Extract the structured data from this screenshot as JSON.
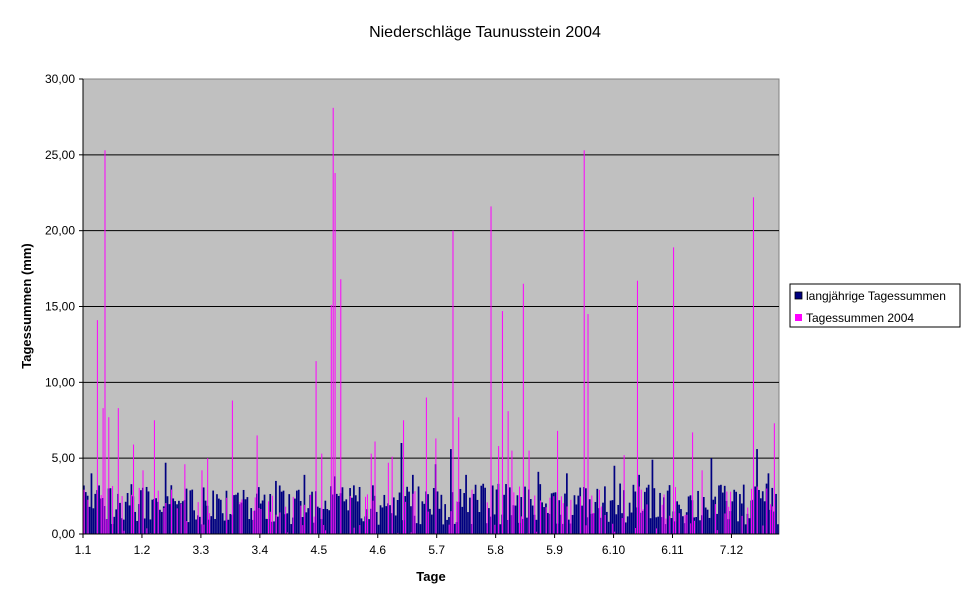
{
  "chart_data": {
    "type": "bar",
    "title": "Niederschläge Taunusstein 2004",
    "xlabel": "Tage",
    "ylabel": "Tagessummen  (mm)",
    "ylim": [
      0,
      30
    ],
    "y_ticks": [
      "0,00",
      "5,00",
      "10,00",
      "15,00",
      "20,00",
      "25,00",
      "30,00"
    ],
    "y_tick_values": [
      0,
      5,
      10,
      15,
      20,
      25,
      30
    ],
    "x_tick_labels": [
      "1.1",
      "1.2",
      "3.3",
      "3.4",
      "4.5",
      "4.6",
      "5.7",
      "5.8",
      "5.9",
      "6.10",
      "6.11",
      "7.12"
    ],
    "x_tick_days": [
      1,
      32,
      63,
      94,
      125,
      156,
      187,
      218,
      249,
      280,
      311,
      342
    ],
    "days": 366,
    "grid": true,
    "legend_position": "right",
    "colors": {
      "plot_bg": "#c0c0c0",
      "longterm": "#000080",
      "year2004": "#ff00ff"
    },
    "series": [
      {
        "name": "langjährige Tagessummen",
        "color": "#000080",
        "baseline_mm": 2.1,
        "peaks": [
          [
            1,
            3.2
          ],
          [
            5,
            4.0
          ],
          [
            44,
            4.7
          ],
          [
            102,
            3.5
          ],
          [
            117,
            3.9
          ],
          [
            133,
            3.8
          ],
          [
            146,
            3.1
          ],
          [
            168,
            6.0
          ],
          [
            174,
            3.9
          ],
          [
            186,
            4.6
          ],
          [
            194,
            5.6
          ],
          [
            202,
            3.9
          ],
          [
            216,
            3.2
          ],
          [
            240,
            4.1
          ],
          [
            255,
            4.0
          ],
          [
            280,
            4.5
          ],
          [
            293,
            3.9
          ],
          [
            300,
            4.9
          ],
          [
            331,
            5.0
          ],
          [
            355,
            5.6
          ],
          [
            361,
            4.0
          ]
        ]
      },
      {
        "name": "Tagessummen 2004",
        "color": "#ff00ff",
        "values_sparse": [
          [
            8,
            14.1
          ],
          [
            11,
            8.3
          ],
          [
            12,
            25.3
          ],
          [
            14,
            7.7
          ],
          [
            19,
            8.3
          ],
          [
            27,
            5.9
          ],
          [
            32,
            4.2
          ],
          [
            38,
            7.5
          ],
          [
            54,
            4.6
          ],
          [
            63,
            4.2
          ],
          [
            66,
            5.0
          ],
          [
            79,
            8.8
          ],
          [
            92,
            6.5
          ],
          [
            123,
            11.4
          ],
          [
            126,
            5.3
          ],
          [
            131,
            15.1
          ],
          [
            132,
            28.1
          ],
          [
            133,
            23.8
          ],
          [
            136,
            16.8
          ],
          [
            152,
            5.3
          ],
          [
            154,
            6.1
          ],
          [
            161,
            4.7
          ],
          [
            163,
            5.1
          ],
          [
            169,
            7.5
          ],
          [
            181,
            9.0
          ],
          [
            186,
            6.3
          ],
          [
            195,
            20.0
          ],
          [
            198,
            7.7
          ],
          [
            215,
            21.6
          ],
          [
            219,
            5.8
          ],
          [
            221,
            14.7
          ],
          [
            224,
            8.1
          ],
          [
            226,
            5.5
          ],
          [
            232,
            16.5
          ],
          [
            235,
            5.5
          ],
          [
            250,
            6.8
          ],
          [
            264,
            25.3
          ],
          [
            266,
            14.5
          ],
          [
            285,
            5.2
          ],
          [
            292,
            16.7
          ],
          [
            311,
            18.9
          ],
          [
            321,
            6.7
          ],
          [
            326,
            4.2
          ],
          [
            353,
            22.2
          ],
          [
            364,
            7.3
          ]
        ]
      }
    ]
  }
}
